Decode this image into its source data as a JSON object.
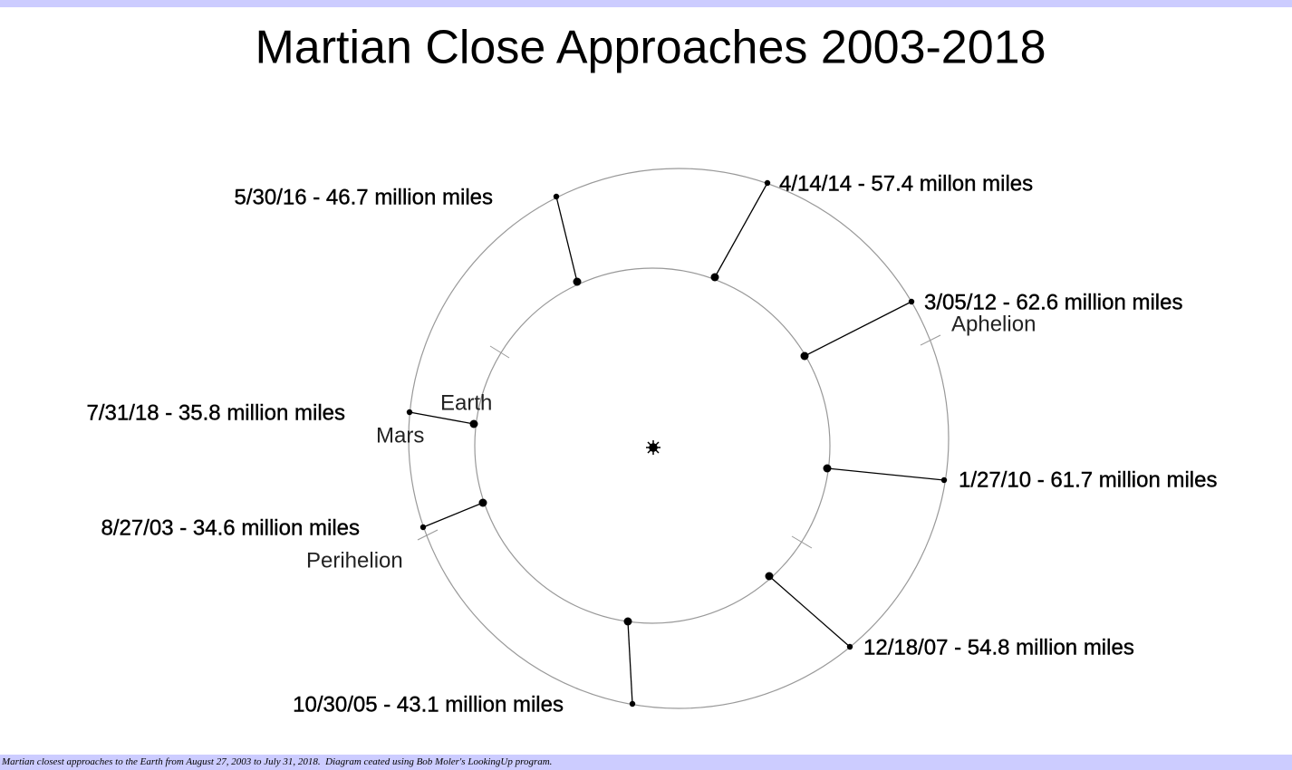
{
  "title": "Martian Close Approaches 2003-2018",
  "approaches": [
    {
      "label": "5/30/16 - 46.7 million miles"
    },
    {
      "label": "4/14/14 - 57.4 millon miles"
    },
    {
      "label": "3/05/12 - 62.6 million miles"
    },
    {
      "label": "1/27/10 - 61.7 million miles"
    },
    {
      "label": "12/18/07 - 54.8 million miles"
    },
    {
      "label": "10/30/05 - 43.1 million miles"
    },
    {
      "label": "8/27/03 - 34.6 million miles"
    },
    {
      "label": "7/31/18 - 35.8 million miles"
    }
  ],
  "labels": {
    "earth": "Earth",
    "mars": "Mars",
    "aphelion": "Aphelion",
    "perihelion": "Perihelion"
  },
  "caption": "Martian closest approaches to the Earth from August 27, 2003 to July 31, 2018.  Diagram ceated using Bob Moler's LookingUp program."
}
